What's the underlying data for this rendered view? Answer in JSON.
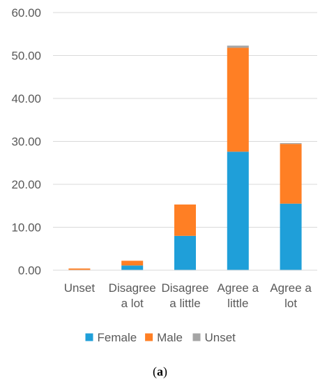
{
  "chart_data": {
    "type": "bar",
    "stacked": true,
    "categories": [
      [
        "Unset"
      ],
      [
        "Disagree",
        "a lot"
      ],
      [
        "Disagree",
        "a little"
      ],
      [
        "Agree a",
        "little"
      ],
      [
        "Agree a",
        "lot"
      ]
    ],
    "series": [
      {
        "name": "Female",
        "color": "#1f9fd9",
        "values": [
          0.0,
          1.1,
          8.0,
          27.6,
          15.5
        ]
      },
      {
        "name": "Male",
        "color": "#ff7f24",
        "values": [
          0.4,
          1.1,
          7.3,
          24.2,
          13.9
        ]
      },
      {
        "name": "Unset",
        "color": "#a5a5a5",
        "values": [
          0.0,
          0.0,
          0.0,
          0.5,
          0.2
        ]
      }
    ],
    "ylim": [
      0,
      60
    ],
    "y_ticks": [
      "0.00",
      "10.00",
      "20.00",
      "30.00",
      "40.00",
      "50.00",
      "60.00"
    ],
    "y_tick_values": [
      0,
      10,
      20,
      30,
      40,
      50,
      60
    ],
    "grid": true,
    "legend": "bottom"
  },
  "caption": {
    "open": "(",
    "label": "a",
    "close": ")"
  }
}
